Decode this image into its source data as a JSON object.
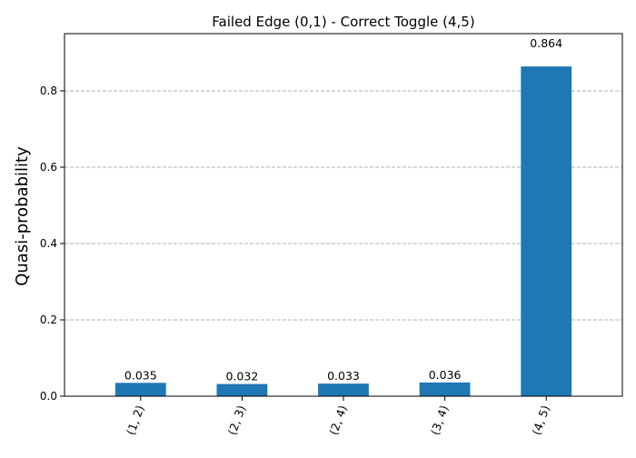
{
  "chart_data": {
    "type": "bar",
    "title": "Failed Edge (0,1) - Correct Toggle (4,5)",
    "xlabel": "",
    "ylabel": "Quasi-probability",
    "categories": [
      "(1, 2)",
      "(2, 3)",
      "(2, 4)",
      "(3, 4)",
      "(4, 5)"
    ],
    "values": [
      0.035,
      0.032,
      0.033,
      0.036,
      0.864
    ],
    "value_labels": [
      "0.035",
      "0.032",
      "0.033",
      "0.036",
      "0.864"
    ],
    "ylim": [
      0,
      0.95
    ],
    "yticks": [
      0.0,
      0.2,
      0.4,
      0.6,
      0.8
    ],
    "ytick_labels": [
      "0.0",
      "0.2",
      "0.4",
      "0.6",
      "0.8"
    ],
    "grid": "y-dashed",
    "bar_color": "#1f77b4",
    "grid_color": "#b0b0b0"
  }
}
